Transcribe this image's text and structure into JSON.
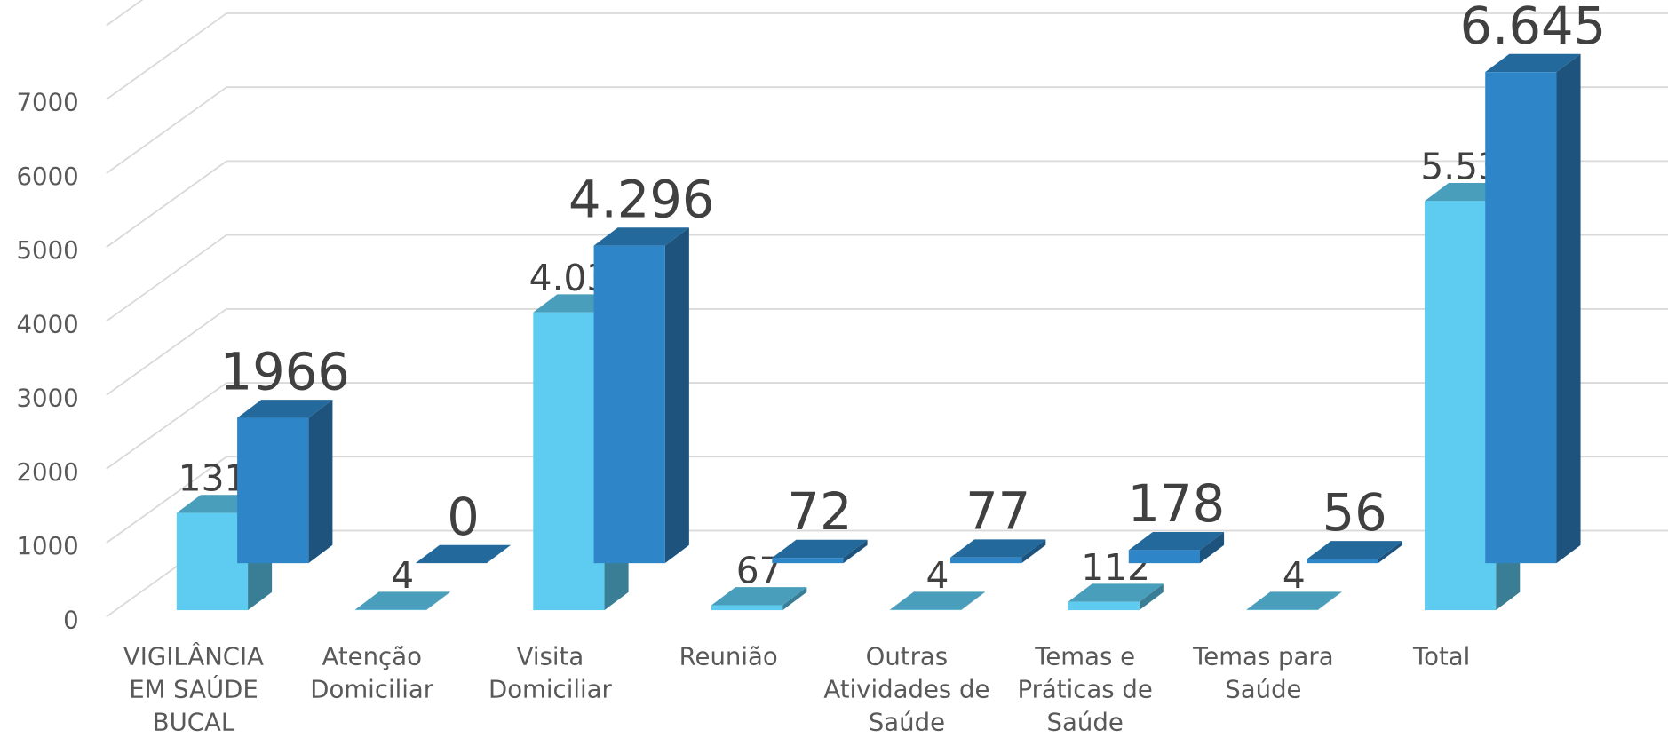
{
  "chart_data": {
    "type": "bar3d",
    "categories": [
      "VIGILÂNCIA EM SAÚDE BUCAL",
      "Atenção Domiciliar",
      "Visita Domiciliar",
      "Reunião",
      "Outras Atividades de Saúde",
      "Temas e Práticas de Saúde",
      "Temas para Saúde",
      "Total"
    ],
    "series": [
      {
        "color": "#5ecbf0",
        "values": [
          1315,
          4,
          4030,
          67,
          4,
          112,
          4,
          5536
        ],
        "value_labels": [
          "1315",
          "4",
          "4.030",
          "67",
          "4",
          "112",
          "4",
          "5.536"
        ]
      },
      {
        "color": "#2e86c8",
        "values": [
          1966,
          0,
          4296,
          72,
          77,
          178,
          56,
          6645
        ],
        "value_labels": [
          "1966",
          "0",
          "4.296",
          "72",
          "77",
          "178",
          "56",
          "6.645"
        ]
      }
    ],
    "ylim": [
      0,
      7000
    ],
    "yticks": [
      0,
      1000,
      2000,
      3000,
      4000,
      5000,
      6000,
      7000
    ],
    "grid": true
  }
}
